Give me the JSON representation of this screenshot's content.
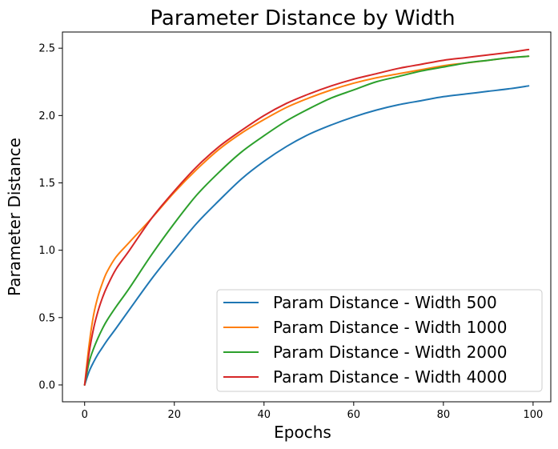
{
  "chart_data": {
    "type": "line",
    "title": "Parameter Distance by Width",
    "xlabel": "Epochs",
    "ylabel": "Parameter Distance",
    "xlim": [
      -4.95,
      103.95
    ],
    "ylim": [
      -0.125,
      2.62
    ],
    "xticks": [
      0,
      20,
      40,
      60,
      80,
      100
    ],
    "yticks": [
      0.0,
      0.5,
      1.0,
      1.5,
      2.0,
      2.5
    ],
    "xtick_labels": [
      "0",
      "20",
      "40",
      "60",
      "80",
      "100"
    ],
    "ytick_labels": [
      "0.0",
      "0.5",
      "1.0",
      "1.5",
      "2.0",
      "2.5"
    ],
    "grid": false,
    "legend_position": "lower-right",
    "series": [
      {
        "name": "Param Distance - Width 500",
        "color": "#1f77b4",
        "x": [
          0,
          1,
          2,
          3,
          4,
          5,
          7,
          10,
          15,
          20,
          25,
          30,
          35,
          40,
          45,
          50,
          55,
          60,
          65,
          70,
          75,
          80,
          85,
          90,
          95,
          99
        ],
        "y": [
          0.0,
          0.1,
          0.17,
          0.23,
          0.28,
          0.33,
          0.42,
          0.56,
          0.79,
          1.0,
          1.2,
          1.37,
          1.53,
          1.66,
          1.77,
          1.86,
          1.93,
          1.99,
          2.04,
          2.08,
          2.11,
          2.14,
          2.16,
          2.18,
          2.2,
          2.22
        ]
      },
      {
        "name": "Param Distance - Width 1000",
        "color": "#ff7f0e",
        "x": [
          0,
          1,
          2,
          3,
          4,
          5,
          7,
          10,
          15,
          20,
          25,
          30,
          35,
          40,
          45,
          50,
          55,
          60,
          65,
          70,
          75,
          80,
          85,
          90,
          95,
          99
        ],
        "y": [
          0.0,
          0.3,
          0.52,
          0.66,
          0.76,
          0.84,
          0.95,
          1.06,
          1.24,
          1.43,
          1.6,
          1.75,
          1.87,
          1.97,
          2.06,
          2.13,
          2.19,
          2.24,
          2.28,
          2.31,
          2.34,
          2.37,
          2.39,
          2.41,
          2.43,
          2.44
        ]
      },
      {
        "name": "Param Distance - Width 2000",
        "color": "#2ca02c",
        "x": [
          0,
          1,
          2,
          3,
          4,
          5,
          7,
          10,
          15,
          20,
          25,
          30,
          35,
          40,
          45,
          50,
          55,
          60,
          65,
          70,
          75,
          80,
          85,
          90,
          95,
          99
        ],
        "y": [
          0.0,
          0.17,
          0.27,
          0.35,
          0.42,
          0.48,
          0.58,
          0.72,
          0.97,
          1.2,
          1.41,
          1.58,
          1.73,
          1.85,
          1.96,
          2.05,
          2.13,
          2.19,
          2.25,
          2.29,
          2.33,
          2.36,
          2.39,
          2.41,
          2.43,
          2.44
        ]
      },
      {
        "name": "Param Distance - Width 4000",
        "color": "#d62728",
        "x": [
          0,
          1,
          2,
          3,
          4,
          5,
          7,
          10,
          15,
          20,
          25,
          30,
          35,
          40,
          45,
          50,
          55,
          60,
          65,
          70,
          75,
          80,
          85,
          90,
          95,
          99
        ],
        "y": [
          0.0,
          0.24,
          0.42,
          0.55,
          0.65,
          0.73,
          0.86,
          1.0,
          1.24,
          1.44,
          1.62,
          1.77,
          1.89,
          2.0,
          2.09,
          2.16,
          2.22,
          2.27,
          2.31,
          2.35,
          2.38,
          2.41,
          2.43,
          2.45,
          2.47,
          2.49
        ]
      }
    ]
  }
}
